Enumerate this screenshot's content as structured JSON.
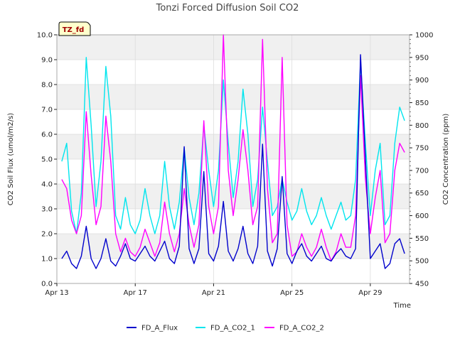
{
  "chart_data": {
    "type": "line",
    "title": "Tonzi Forced Diffusion Soil CO2",
    "site_badge": "TZ_fd",
    "xlabel": "Time",
    "ylabel_left": "CO2 Soil Flux (umol/m2/s)",
    "ylabel_right": "CO2 Concentration (ppm)",
    "xlim": [
      "2024-04-13",
      "2024-05-01"
    ],
    "x_ticks": [
      {
        "date": "2024-04-13",
        "label": "Apr 13"
      },
      {
        "date": "2024-04-17",
        "label": "Apr 17"
      },
      {
        "date": "2024-04-21",
        "label": "Apr 21"
      },
      {
        "date": "2024-04-25",
        "label": "Apr 25"
      },
      {
        "date": "2024-04-29",
        "label": "Apr 29"
      }
    ],
    "ylim_left": [
      0,
      10
    ],
    "ylim_right": [
      450,
      1000
    ],
    "y_ticks_left": [
      "0.0",
      "1.0",
      "2.0",
      "3.0",
      "4.0",
      "5.0",
      "6.0",
      "7.0",
      "8.0",
      "9.0",
      "10.0"
    ],
    "y_ticks_right": [
      "450",
      "500",
      "550",
      "600",
      "650",
      "700",
      "750",
      "800",
      "850",
      "900",
      "950",
      "1000"
    ],
    "grid": true,
    "banding": "alternating gray horizontal bands",
    "legend_position": "bottom",
    "series": [
      {
        "name": "FD_A_Flux",
        "axis": "left",
        "color": "#0000cc",
        "points": [
          [
            "2024-04-13T06:00",
            1.0
          ],
          [
            "2024-04-13T12:00",
            1.3
          ],
          [
            "2024-04-13T18:00",
            0.8
          ],
          [
            "2024-04-14T00:00",
            0.6
          ],
          [
            "2024-04-14T06:00",
            1.1
          ],
          [
            "2024-04-14T12:00",
            2.3
          ],
          [
            "2024-04-14T18:00",
            1.0
          ],
          [
            "2024-04-15T00:00",
            0.6
          ],
          [
            "2024-04-15T06:00",
            1.0
          ],
          [
            "2024-04-15T12:00",
            1.8
          ],
          [
            "2024-04-15T18:00",
            0.9
          ],
          [
            "2024-04-16T00:00",
            0.7
          ],
          [
            "2024-04-16T06:00",
            1.1
          ],
          [
            "2024-04-16T12:00",
            1.6
          ],
          [
            "2024-04-16T18:00",
            1.0
          ],
          [
            "2024-04-17T00:00",
            0.9
          ],
          [
            "2024-04-17T06:00",
            1.2
          ],
          [
            "2024-04-17T12:00",
            1.5
          ],
          [
            "2024-04-17T18:00",
            1.1
          ],
          [
            "2024-04-18T00:00",
            0.9
          ],
          [
            "2024-04-18T06:00",
            1.3
          ],
          [
            "2024-04-18T12:00",
            1.7
          ],
          [
            "2024-04-18T18:00",
            1.0
          ],
          [
            "2024-04-19T00:00",
            0.8
          ],
          [
            "2024-04-19T06:00",
            1.5
          ],
          [
            "2024-04-19T12:00",
            5.5
          ],
          [
            "2024-04-19T18:00",
            1.4
          ],
          [
            "2024-04-20T00:00",
            0.8
          ],
          [
            "2024-04-20T06:00",
            1.4
          ],
          [
            "2024-04-20T12:00",
            4.5
          ],
          [
            "2024-04-20T18:00",
            1.2
          ],
          [
            "2024-04-21T00:00",
            0.9
          ],
          [
            "2024-04-21T06:00",
            1.5
          ],
          [
            "2024-04-21T12:00",
            3.3
          ],
          [
            "2024-04-21T18:00",
            1.3
          ],
          [
            "2024-04-22T00:00",
            0.9
          ],
          [
            "2024-04-22T06:00",
            1.4
          ],
          [
            "2024-04-22T12:00",
            2.3
          ],
          [
            "2024-04-22T18:00",
            1.2
          ],
          [
            "2024-04-23T00:00",
            0.8
          ],
          [
            "2024-04-23T06:00",
            1.5
          ],
          [
            "2024-04-23T12:00",
            5.6
          ],
          [
            "2024-04-23T18:00",
            1.3
          ],
          [
            "2024-04-24T00:00",
            0.7
          ],
          [
            "2024-04-24T06:00",
            1.4
          ],
          [
            "2024-04-24T12:00",
            4.3
          ],
          [
            "2024-04-24T18:00",
            1.2
          ],
          [
            "2024-04-25T00:00",
            0.8
          ],
          [
            "2024-04-25T06:00",
            1.3
          ],
          [
            "2024-04-25T12:00",
            1.6
          ],
          [
            "2024-04-25T18:00",
            1.1
          ],
          [
            "2024-04-26T00:00",
            0.9
          ],
          [
            "2024-04-26T06:00",
            1.2
          ],
          [
            "2024-04-26T12:00",
            1.5
          ],
          [
            "2024-04-26T18:00",
            1.0
          ],
          [
            "2024-04-27T00:00",
            0.9
          ],
          [
            "2024-04-27T06:00",
            1.2
          ],
          [
            "2024-04-27T12:00",
            1.4
          ],
          [
            "2024-04-27T18:00",
            1.1
          ],
          [
            "2024-04-28T00:00",
            1.0
          ],
          [
            "2024-04-28T06:00",
            1.4
          ],
          [
            "2024-04-28T12:00",
            9.2
          ],
          [
            "2024-04-28T18:00",
            5.0
          ],
          [
            "2024-04-29T00:00",
            1.0
          ],
          [
            "2024-04-29T06:00",
            1.3
          ],
          [
            "2024-04-29T12:00",
            1.6
          ],
          [
            "2024-04-29T18:00",
            0.6
          ],
          [
            "2024-04-30T00:00",
            0.8
          ],
          [
            "2024-04-30T06:00",
            1.6
          ],
          [
            "2024-04-30T12:00",
            1.8
          ],
          [
            "2024-04-30T18:00",
            1.2
          ]
        ]
      },
      {
        "name": "FD_A_CO2_1",
        "axis": "right",
        "color": "#00e5ee",
        "points": [
          [
            "2024-04-13T06:00",
            720
          ],
          [
            "2024-04-13T12:00",
            760
          ],
          [
            "2024-04-13T18:00",
            610
          ],
          [
            "2024-04-14T00:00",
            560
          ],
          [
            "2024-04-14T06:00",
            650
          ],
          [
            "2024-04-14T12:00",
            950
          ],
          [
            "2024-04-14T18:00",
            800
          ],
          [
            "2024-04-15T00:00",
            620
          ],
          [
            "2024-04-15T06:00",
            720
          ],
          [
            "2024-04-15T12:00",
            930
          ],
          [
            "2024-04-15T18:00",
            820
          ],
          [
            "2024-04-16T00:00",
            600
          ],
          [
            "2024-04-16T06:00",
            570
          ],
          [
            "2024-04-16T12:00",
            640
          ],
          [
            "2024-04-16T18:00",
            580
          ],
          [
            "2024-04-17T00:00",
            560
          ],
          [
            "2024-04-17T06:00",
            590
          ],
          [
            "2024-04-17T12:00",
            660
          ],
          [
            "2024-04-17T18:00",
            600
          ],
          [
            "2024-04-18T00:00",
            560
          ],
          [
            "2024-04-18T06:00",
            600
          ],
          [
            "2024-04-18T12:00",
            720
          ],
          [
            "2024-04-18T18:00",
            620
          ],
          [
            "2024-04-19T00:00",
            570
          ],
          [
            "2024-04-19T06:00",
            630
          ],
          [
            "2024-04-19T12:00",
            750
          ],
          [
            "2024-04-19T18:00",
            640
          ],
          [
            "2024-04-20T00:00",
            580
          ],
          [
            "2024-04-20T06:00",
            650
          ],
          [
            "2024-04-20T12:00",
            800
          ],
          [
            "2024-04-20T18:00",
            700
          ],
          [
            "2024-04-21T00:00",
            620
          ],
          [
            "2024-04-21T06:00",
            700
          ],
          [
            "2024-04-21T12:00",
            900
          ],
          [
            "2024-04-21T18:00",
            760
          ],
          [
            "2024-04-22T00:00",
            640
          ],
          [
            "2024-04-22T06:00",
            720
          ],
          [
            "2024-04-22T12:00",
            880
          ],
          [
            "2024-04-22T18:00",
            780
          ],
          [
            "2024-04-23T00:00",
            620
          ],
          [
            "2024-04-23T06:00",
            680
          ],
          [
            "2024-04-23T12:00",
            840
          ],
          [
            "2024-04-23T18:00",
            720
          ],
          [
            "2024-04-24T00:00",
            600
          ],
          [
            "2024-04-24T06:00",
            620
          ],
          [
            "2024-04-24T12:00",
            680
          ],
          [
            "2024-04-24T18:00",
            630
          ],
          [
            "2024-04-25T00:00",
            590
          ],
          [
            "2024-04-25T06:00",
            610
          ],
          [
            "2024-04-25T12:00",
            660
          ],
          [
            "2024-04-25T18:00",
            610
          ],
          [
            "2024-04-26T00:00",
            580
          ],
          [
            "2024-04-26T06:00",
            600
          ],
          [
            "2024-04-26T12:00",
            640
          ],
          [
            "2024-04-26T18:00",
            600
          ],
          [
            "2024-04-27T00:00",
            570
          ],
          [
            "2024-04-27T06:00",
            600
          ],
          [
            "2024-04-27T12:00",
            630
          ],
          [
            "2024-04-27T18:00",
            590
          ],
          [
            "2024-04-28T00:00",
            600
          ],
          [
            "2024-04-28T06:00",
            680
          ],
          [
            "2024-04-28T12:00",
            940
          ],
          [
            "2024-04-28T18:00",
            760
          ],
          [
            "2024-04-29T00:00",
            600
          ],
          [
            "2024-04-29T06:00",
            700
          ],
          [
            "2024-04-29T12:00",
            760
          ],
          [
            "2024-04-29T18:00",
            580
          ],
          [
            "2024-04-30T00:00",
            600
          ],
          [
            "2024-04-30T06:00",
            760
          ],
          [
            "2024-04-30T12:00",
            840
          ],
          [
            "2024-04-30T18:00",
            810
          ]
        ]
      },
      {
        "name": "FD_A_CO2_2",
        "axis": "right",
        "color": "#ff00ff",
        "points": [
          [
            "2024-04-13T06:00",
            680
          ],
          [
            "2024-04-13T12:00",
            660
          ],
          [
            "2024-04-13T18:00",
            590
          ],
          [
            "2024-04-14T00:00",
            560
          ],
          [
            "2024-04-14T06:00",
            600
          ],
          [
            "2024-04-14T12:00",
            830
          ],
          [
            "2024-04-14T18:00",
            690
          ],
          [
            "2024-04-15T00:00",
            580
          ],
          [
            "2024-04-15T06:00",
            620
          ],
          [
            "2024-04-15T12:00",
            820
          ],
          [
            "2024-04-15T18:00",
            720
          ],
          [
            "2024-04-16T00:00",
            560
          ],
          [
            "2024-04-16T06:00",
            520
          ],
          [
            "2024-04-16T12:00",
            550
          ],
          [
            "2024-04-16T18:00",
            520
          ],
          [
            "2024-04-17T00:00",
            510
          ],
          [
            "2024-04-17T06:00",
            530
          ],
          [
            "2024-04-17T12:00",
            570
          ],
          [
            "2024-04-17T18:00",
            540
          ],
          [
            "2024-04-18T00:00",
            510
          ],
          [
            "2024-04-18T06:00",
            540
          ],
          [
            "2024-04-18T12:00",
            630
          ],
          [
            "2024-04-18T18:00",
            560
          ],
          [
            "2024-04-19T00:00",
            520
          ],
          [
            "2024-04-19T06:00",
            560
          ],
          [
            "2024-04-19T12:00",
            660
          ],
          [
            "2024-04-19T18:00",
            580
          ],
          [
            "2024-04-20T00:00",
            530
          ],
          [
            "2024-04-20T06:00",
            580
          ],
          [
            "2024-04-20T12:00",
            810
          ],
          [
            "2024-04-20T18:00",
            620
          ],
          [
            "2024-04-21T00:00",
            560
          ],
          [
            "2024-04-21T06:00",
            620
          ],
          [
            "2024-04-21T12:00",
            1000
          ],
          [
            "2024-04-21T18:00",
            700
          ],
          [
            "2024-04-22T00:00",
            600
          ],
          [
            "2024-04-22T06:00",
            680
          ],
          [
            "2024-04-22T12:00",
            790
          ],
          [
            "2024-04-22T18:00",
            700
          ],
          [
            "2024-04-23T00:00",
            580
          ],
          [
            "2024-04-23T06:00",
            620
          ],
          [
            "2024-04-23T12:00",
            990
          ],
          [
            "2024-04-23T18:00",
            660
          ],
          [
            "2024-04-24T00:00",
            540
          ],
          [
            "2024-04-24T06:00",
            560
          ],
          [
            "2024-04-24T12:00",
            950
          ],
          [
            "2024-04-24T18:00",
            580
          ],
          [
            "2024-04-25T00:00",
            510
          ],
          [
            "2024-04-25T06:00",
            520
          ],
          [
            "2024-04-25T12:00",
            560
          ],
          [
            "2024-04-25T18:00",
            530
          ],
          [
            "2024-04-26T00:00",
            510
          ],
          [
            "2024-04-26T06:00",
            530
          ],
          [
            "2024-04-26T12:00",
            570
          ],
          [
            "2024-04-26T18:00",
            530
          ],
          [
            "2024-04-27T00:00",
            500
          ],
          [
            "2024-04-27T06:00",
            520
          ],
          [
            "2024-04-27T12:00",
            560
          ],
          [
            "2024-04-27T18:00",
            530
          ],
          [
            "2024-04-28T00:00",
            530
          ],
          [
            "2024-04-28T06:00",
            600
          ],
          [
            "2024-04-28T12:00",
            910
          ],
          [
            "2024-04-28T18:00",
            680
          ],
          [
            "2024-04-29T00:00",
            560
          ],
          [
            "2024-04-29T06:00",
            640
          ],
          [
            "2024-04-29T12:00",
            700
          ],
          [
            "2024-04-29T18:00",
            540
          ],
          [
            "2024-04-30T00:00",
            560
          ],
          [
            "2024-04-30T06:00",
            700
          ],
          [
            "2024-04-30T12:00",
            760
          ],
          [
            "2024-04-30T18:00",
            740
          ]
        ]
      }
    ]
  }
}
